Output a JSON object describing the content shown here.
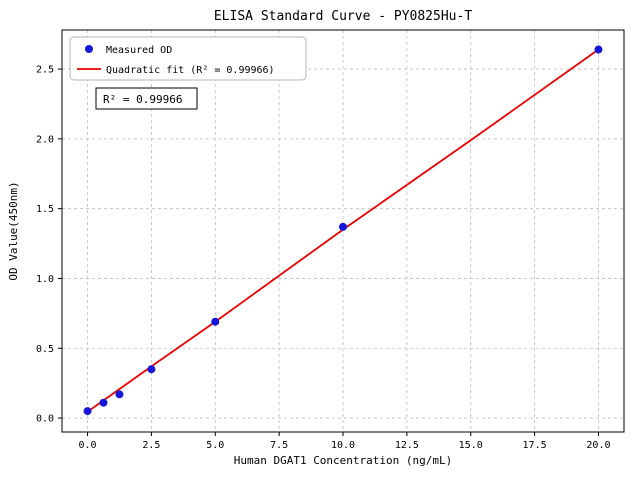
{
  "chart_data": {
    "type": "scatter",
    "title": "ELISA Standard Curve - PY0825Hu-T",
    "xlabel": "Human DGAT1 Concentration (ng/mL)",
    "ylabel": "OD Value(450nm)",
    "xlim": [
      -1,
      21
    ],
    "ylim": [
      -0.1,
      2.78
    ],
    "x_ticks": [
      0,
      2.5,
      5,
      7.5,
      10,
      12.5,
      15,
      17.5,
      20
    ],
    "x_tick_labels": [
      "0.0",
      "2.5",
      "5.0",
      "7.5",
      "10.0",
      "12.5",
      "15.0",
      "17.5",
      "20.0"
    ],
    "y_ticks": [
      0,
      0.5,
      1,
      1.5,
      2,
      2.5
    ],
    "y_tick_labels": [
      "0.0",
      "0.5",
      "1.0",
      "1.5",
      "2.0",
      "2.5"
    ],
    "grid": true,
    "grid_style": "dashed",
    "grid_color": "#bdbdbd",
    "legend_position": "upper left",
    "series": [
      {
        "name": "Measured OD",
        "type": "scatter",
        "color": "#1515dc",
        "x": [
          0,
          0.625,
          1.25,
          2.5,
          5,
          10,
          20
        ],
        "y": [
          0.05,
          0.11,
          0.17,
          0.35,
          0.69,
          1.37,
          2.64
        ]
      },
      {
        "name": "Quadratic fit (R² = 0.99966)",
        "type": "line",
        "color": "#ee0000",
        "x": [
          0,
          2.5,
          5,
          10,
          15,
          20
        ],
        "y": [
          0.045,
          0.37,
          0.69,
          1.35,
          1.99,
          2.64
        ]
      }
    ],
    "annotation": "R² = 0.99966",
    "r_squared": 0.99966
  }
}
